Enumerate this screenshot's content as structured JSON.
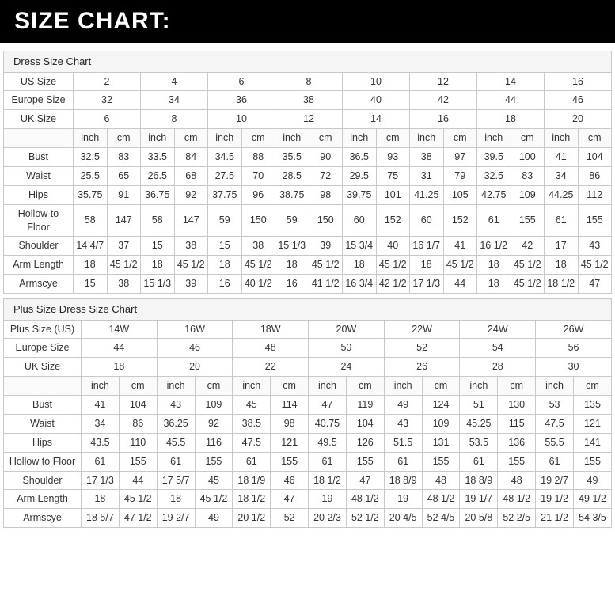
{
  "page": {
    "title": "SIZE CHART:"
  },
  "colors": {
    "header_bg": "#000000",
    "header_text": "#ffffff",
    "title_row_bg": "#f5f5f5",
    "unit_row_bg": "#fafafa",
    "border": "#c9c9c9",
    "text": "#333333"
  },
  "tables": [
    {
      "title": "Dress Size Chart",
      "units": [
        "inch",
        "cm"
      ],
      "size_rows": [
        {
          "label": "US Size",
          "values": [
            "2",
            "4",
            "6",
            "8",
            "10",
            "12",
            "14",
            "16"
          ]
        },
        {
          "label": "Europe Size",
          "values": [
            "32",
            "34",
            "36",
            "38",
            "40",
            "42",
            "44",
            "46"
          ]
        },
        {
          "label": "UK Size",
          "values": [
            "6",
            "8",
            "10",
            "12",
            "14",
            "16",
            "18",
            "20"
          ]
        }
      ],
      "measure_rows": [
        {
          "label": "Bust",
          "values": [
            "32.5",
            "83",
            "33.5",
            "84",
            "34.5",
            "88",
            "35.5",
            "90",
            "36.5",
            "93",
            "38",
            "97",
            "39.5",
            "100",
            "41",
            "104"
          ]
        },
        {
          "label": "Waist",
          "values": [
            "25.5",
            "65",
            "26.5",
            "68",
            "27.5",
            "70",
            "28.5",
            "72",
            "29.5",
            "75",
            "31",
            "79",
            "32.5",
            "83",
            "34",
            "86"
          ]
        },
        {
          "label": "Hips",
          "values": [
            "35.75",
            "91",
            "36.75",
            "92",
            "37.75",
            "96",
            "38.75",
            "98",
            "39.75",
            "101",
            "41.25",
            "105",
            "42.75",
            "109",
            "44.25",
            "112"
          ]
        },
        {
          "label": "Hollow to Floor",
          "values": [
            "58",
            "147",
            "58",
            "147",
            "59",
            "150",
            "59",
            "150",
            "60",
            "152",
            "60",
            "152",
            "61",
            "155",
            "61",
            "155"
          ]
        },
        {
          "label": "Shoulder",
          "values": [
            "14 4/7",
            "37",
            "15",
            "38",
            "15",
            "38",
            "15 1/3",
            "39",
            "15 3/4",
            "40",
            "16 1/7",
            "41",
            "16 1/2",
            "42",
            "17",
            "43"
          ]
        },
        {
          "label": "Arm Length",
          "values": [
            "18",
            "45 1/2",
            "18",
            "45 1/2",
            "18",
            "45 1/2",
            "18",
            "45 1/2",
            "18",
            "45 1/2",
            "18",
            "45 1/2",
            "18",
            "45 1/2",
            "18",
            "45 1/2"
          ]
        },
        {
          "label": "Armscye",
          "values": [
            "15",
            "38",
            "15 1/3",
            "39",
            "16",
            "40 1/2",
            "16",
            "41 1/2",
            "16 3/4",
            "42 1/2",
            "17 1/3",
            "44",
            "18",
            "45 1/2",
            "18 1/2",
            "47"
          ]
        }
      ]
    },
    {
      "title": "Plus Size Dress Size Chart",
      "units": [
        "inch",
        "cm"
      ],
      "size_rows": [
        {
          "label": "Plus Size (US)",
          "values": [
            "14W",
            "16W",
            "18W",
            "20W",
            "22W",
            "24W",
            "26W"
          ]
        },
        {
          "label": "Europe Size",
          "values": [
            "44",
            "46",
            "48",
            "50",
            "52",
            "54",
            "56"
          ]
        },
        {
          "label": "UK Size",
          "values": [
            "18",
            "20",
            "22",
            "24",
            "26",
            "28",
            "30"
          ]
        }
      ],
      "measure_rows": [
        {
          "label": "Bust",
          "values": [
            "41",
            "104",
            "43",
            "109",
            "45",
            "114",
            "47",
            "119",
            "49",
            "124",
            "51",
            "130",
            "53",
            "135"
          ]
        },
        {
          "label": "Waist",
          "values": [
            "34",
            "86",
            "36.25",
            "92",
            "38.5",
            "98",
            "40.75",
            "104",
            "43",
            "109",
            "45.25",
            "115",
            "47.5",
            "121"
          ]
        },
        {
          "label": "Hips",
          "values": [
            "43.5",
            "110",
            "45.5",
            "116",
            "47.5",
            "121",
            "49.5",
            "126",
            "51.5",
            "131",
            "53.5",
            "136",
            "55.5",
            "141"
          ]
        },
        {
          "label": "Hollow to Floor",
          "values": [
            "61",
            "155",
            "61",
            "155",
            "61",
            "155",
            "61",
            "155",
            "61",
            "155",
            "61",
            "155",
            "61",
            "155"
          ]
        },
        {
          "label": "Shoulder",
          "values": [
            "17 1/3",
            "44",
            "17 5/7",
            "45",
            "18 1/9",
            "46",
            "18 1/2",
            "47",
            "18 8/9",
            "48",
            "18 8/9",
            "48",
            "19 2/7",
            "49"
          ]
        },
        {
          "label": "Arm Length",
          "values": [
            "18",
            "45 1/2",
            "18",
            "45 1/2",
            "18 1/2",
            "47",
            "19",
            "48 1/2",
            "19",
            "48 1/2",
            "19 1/7",
            "48 1/2",
            "19 1/2",
            "49 1/2"
          ]
        },
        {
          "label": "Armscye",
          "values": [
            "18 5/7",
            "47 1/2",
            "19 2/7",
            "49",
            "20 1/2",
            "52",
            "20 2/3",
            "52 1/2",
            "20 4/5",
            "52 4/5",
            "20 5/8",
            "52 2/5",
            "21 1/2",
            "54 3/5"
          ]
        }
      ]
    }
  ]
}
